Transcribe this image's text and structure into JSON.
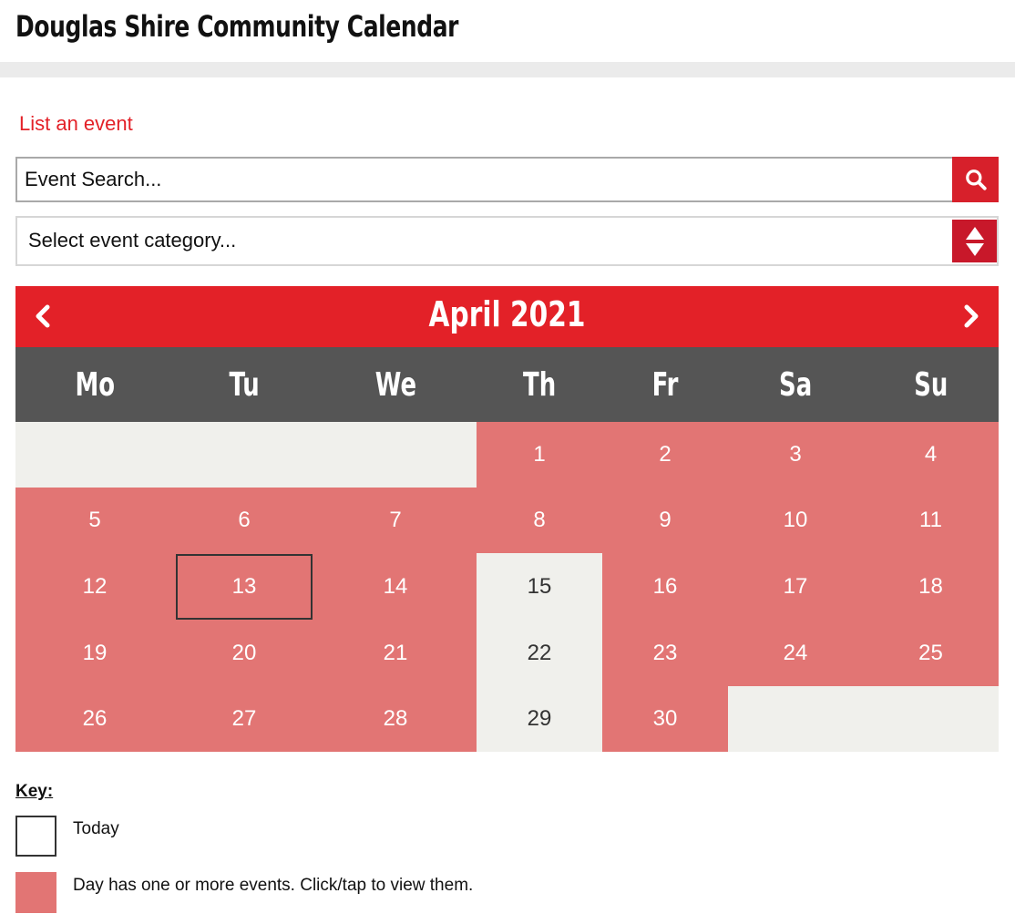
{
  "header": {
    "title": "Douglas Shire Community Calendar"
  },
  "actions": {
    "list_event": "List an event"
  },
  "search": {
    "placeholder": "Event Search..."
  },
  "category_select": {
    "selected": "Select event category..."
  },
  "calendar": {
    "month_label": "April 2021",
    "weekdays": [
      "Mo",
      "Tu",
      "We",
      "Th",
      "Fr",
      "Sa",
      "Su"
    ],
    "today": 13,
    "weeks": [
      [
        null,
        null,
        null,
        {
          "day": "1",
          "events": true
        },
        {
          "day": "2",
          "events": true
        },
        {
          "day": "3",
          "events": true
        },
        {
          "day": "4",
          "events": true
        }
      ],
      [
        {
          "day": "5",
          "events": true
        },
        {
          "day": "6",
          "events": true
        },
        {
          "day": "7",
          "events": true
        },
        {
          "day": "8",
          "events": true
        },
        {
          "day": "9",
          "events": true
        },
        {
          "day": "10",
          "events": true
        },
        {
          "day": "11",
          "events": true
        }
      ],
      [
        {
          "day": "12",
          "events": true
        },
        {
          "day": "13",
          "events": true
        },
        {
          "day": "14",
          "events": true
        },
        {
          "day": "15",
          "events": false
        },
        {
          "day": "16",
          "events": true
        },
        {
          "day": "17",
          "events": true
        },
        {
          "day": "18",
          "events": true
        }
      ],
      [
        {
          "day": "19",
          "events": true
        },
        {
          "day": "20",
          "events": true
        },
        {
          "day": "21",
          "events": true
        },
        {
          "day": "22",
          "events": false
        },
        {
          "day": "23",
          "events": true
        },
        {
          "day": "24",
          "events": true
        },
        {
          "day": "25",
          "events": true
        }
      ],
      [
        {
          "day": "26",
          "events": true
        },
        {
          "day": "27",
          "events": true
        },
        {
          "day": "28",
          "events": true
        },
        {
          "day": "29",
          "events": false
        },
        {
          "day": "30",
          "events": true
        },
        null,
        null
      ]
    ]
  },
  "key": {
    "title": "Key:",
    "today_label": "Today",
    "events_label": "Day has one or more events. Click/tap to view them."
  },
  "colors": {
    "brand_red": "#e32128",
    "event_day": "#e27574",
    "empty_day": "#f0f0ec",
    "weekday_bar": "#555555"
  },
  "icons": {
    "search": "search-icon",
    "prev": "chevron-left-icon",
    "next": "chevron-right-icon",
    "select": "sort-arrows-icon"
  }
}
